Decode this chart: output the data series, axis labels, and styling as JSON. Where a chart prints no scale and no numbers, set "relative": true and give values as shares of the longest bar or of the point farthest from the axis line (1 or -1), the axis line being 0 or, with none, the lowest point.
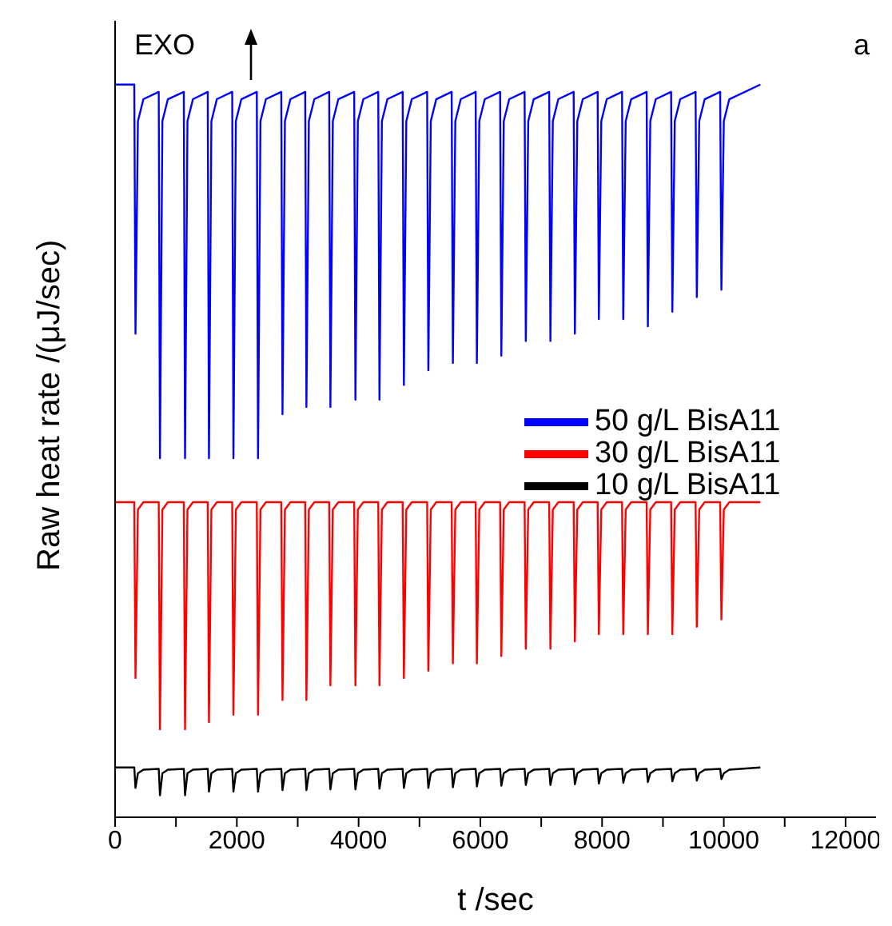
{
  "chart_data": {
    "type": "line",
    "relative": true,
    "xlabel": "t /sec",
    "ylabel": "Raw heat rate /(μJ/sec)",
    "annotations": [
      "EXO",
      "a"
    ],
    "xlim": [
      0,
      12500
    ],
    "xticks": [
      0,
      {
        "value": 1000,
        "label": null
      },
      2000,
      {
        "value": 3000,
        "label": null
      },
      4000,
      {
        "value": 5000,
        "label": null
      },
      6000,
      {
        "value": 7000,
        "label": null
      },
      8000,
      {
        "value": 9000,
        "label": null
      },
      10000,
      {
        "value": 11000,
        "label": null
      },
      12000
    ],
    "legend": "right",
    "grid": false,
    "marker": "none",
    "line_style": "solid",
    "x": [
      0,
      315,
      335,
      375,
      465,
      717,
      737,
      777,
      867,
      1129,
      1149,
      1189,
      1279,
      1522,
      1542,
      1582,
      1672,
      1924,
      1944,
      1984,
      2074,
      2328,
      2348,
      2388,
      2478,
      2730,
      2750,
      2790,
      2880,
      3123,
      3143,
      3183,
      3273,
      3517,
      3537,
      3577,
      3667,
      3928,
      3948,
      3988,
      4078,
      4323,
      4343,
      4383,
      4473,
      4724,
      4744,
      4784,
      4874,
      5126,
      5146,
      5186,
      5276,
      5529,
      5549,
      5589,
      5679,
      5923,
      5943,
      5983,
      6073,
      6325,
      6345,
      6385,
      6475,
      6727,
      6747,
      6787,
      6877,
      7131,
      7151,
      7191,
      7281,
      7533,
      7553,
      7593,
      7683,
      7927,
      7947,
      7987,
      8077,
      8328,
      8348,
      8388,
      8478,
      8732,
      8752,
      8792,
      8882,
      9134,
      9154,
      9194,
      9284,
      9536,
      9556,
      9596,
      9686,
      9940,
      9960,
      10000,
      10090,
      10600
    ],
    "series": [
      {
        "name": "50 g/L BisA11",
        "color": "#0000ff",
        "values": [
          1.0,
          1.0,
          0.66,
          0.95,
          0.98,
          0.99,
          0.49,
          0.95,
          0.98,
          0.99,
          0.49,
          0.95,
          0.98,
          0.99,
          0.49,
          0.95,
          0.98,
          0.99,
          0.49,
          0.95,
          0.98,
          0.99,
          0.49,
          0.95,
          0.98,
          0.99,
          0.55,
          0.95,
          0.98,
          0.99,
          0.56,
          0.95,
          0.98,
          0.99,
          0.56,
          0.95,
          0.98,
          0.99,
          0.57,
          0.95,
          0.98,
          0.99,
          0.57,
          0.95,
          0.98,
          0.99,
          0.59,
          0.95,
          0.98,
          0.99,
          0.61,
          0.95,
          0.98,
          0.99,
          0.62,
          0.95,
          0.98,
          0.99,
          0.62,
          0.95,
          0.98,
          0.99,
          0.63,
          0.95,
          0.98,
          0.99,
          0.65,
          0.95,
          0.98,
          0.99,
          0.65,
          0.95,
          0.98,
          0.99,
          0.66,
          0.95,
          0.98,
          0.99,
          0.68,
          0.95,
          0.98,
          0.99,
          0.68,
          0.95,
          0.98,
          0.99,
          0.67,
          0.95,
          0.98,
          0.99,
          0.69,
          0.95,
          0.98,
          0.99,
          0.71,
          0.95,
          0.98,
          0.99,
          0.72,
          0.95,
          0.98,
          1.0
        ]
      },
      {
        "name": "30 g/L BisA11",
        "color": "#ff0000",
        "values": [
          0.43,
          0.43,
          0.19,
          0.42,
          0.43,
          0.43,
          0.12,
          0.42,
          0.43,
          0.43,
          0.12,
          0.42,
          0.43,
          0.43,
          0.13,
          0.42,
          0.43,
          0.43,
          0.14,
          0.42,
          0.43,
          0.43,
          0.14,
          0.42,
          0.43,
          0.43,
          0.16,
          0.42,
          0.43,
          0.43,
          0.16,
          0.42,
          0.43,
          0.43,
          0.18,
          0.42,
          0.43,
          0.43,
          0.18,
          0.42,
          0.43,
          0.43,
          0.18,
          0.42,
          0.43,
          0.43,
          0.19,
          0.42,
          0.43,
          0.43,
          0.2,
          0.42,
          0.43,
          0.43,
          0.21,
          0.42,
          0.43,
          0.43,
          0.21,
          0.42,
          0.43,
          0.43,
          0.22,
          0.42,
          0.43,
          0.43,
          0.23,
          0.42,
          0.43,
          0.43,
          0.23,
          0.42,
          0.43,
          0.43,
          0.24,
          0.42,
          0.43,
          0.43,
          0.25,
          0.42,
          0.43,
          0.43,
          0.25,
          0.42,
          0.43,
          0.43,
          0.25,
          0.42,
          0.43,
          0.43,
          0.25,
          0.42,
          0.43,
          0.43,
          0.26,
          0.42,
          0.43,
          0.43,
          0.27,
          0.42,
          0.43,
          0.43
        ]
      },
      {
        "name": "10 g/L BisA11",
        "color": "#000000",
        "values": [
          0.068,
          0.068,
          0.04,
          0.06,
          0.065,
          0.066,
          0.03,
          0.06,
          0.065,
          0.066,
          0.03,
          0.06,
          0.065,
          0.066,
          0.035,
          0.06,
          0.065,
          0.066,
          0.035,
          0.06,
          0.065,
          0.066,
          0.035,
          0.06,
          0.065,
          0.066,
          0.037,
          0.06,
          0.065,
          0.066,
          0.037,
          0.06,
          0.065,
          0.066,
          0.038,
          0.06,
          0.065,
          0.066,
          0.038,
          0.06,
          0.065,
          0.066,
          0.039,
          0.06,
          0.065,
          0.066,
          0.04,
          0.06,
          0.065,
          0.066,
          0.04,
          0.06,
          0.065,
          0.066,
          0.041,
          0.06,
          0.065,
          0.066,
          0.042,
          0.06,
          0.065,
          0.066,
          0.043,
          0.06,
          0.065,
          0.066,
          0.044,
          0.06,
          0.065,
          0.066,
          0.044,
          0.06,
          0.065,
          0.066,
          0.045,
          0.06,
          0.065,
          0.066,
          0.046,
          0.06,
          0.065,
          0.066,
          0.047,
          0.06,
          0.065,
          0.066,
          0.048,
          0.06,
          0.065,
          0.066,
          0.049,
          0.06,
          0.065,
          0.066,
          0.05,
          0.06,
          0.065,
          0.066,
          0.052,
          0.06,
          0.065,
          0.068
        ]
      }
    ]
  }
}
